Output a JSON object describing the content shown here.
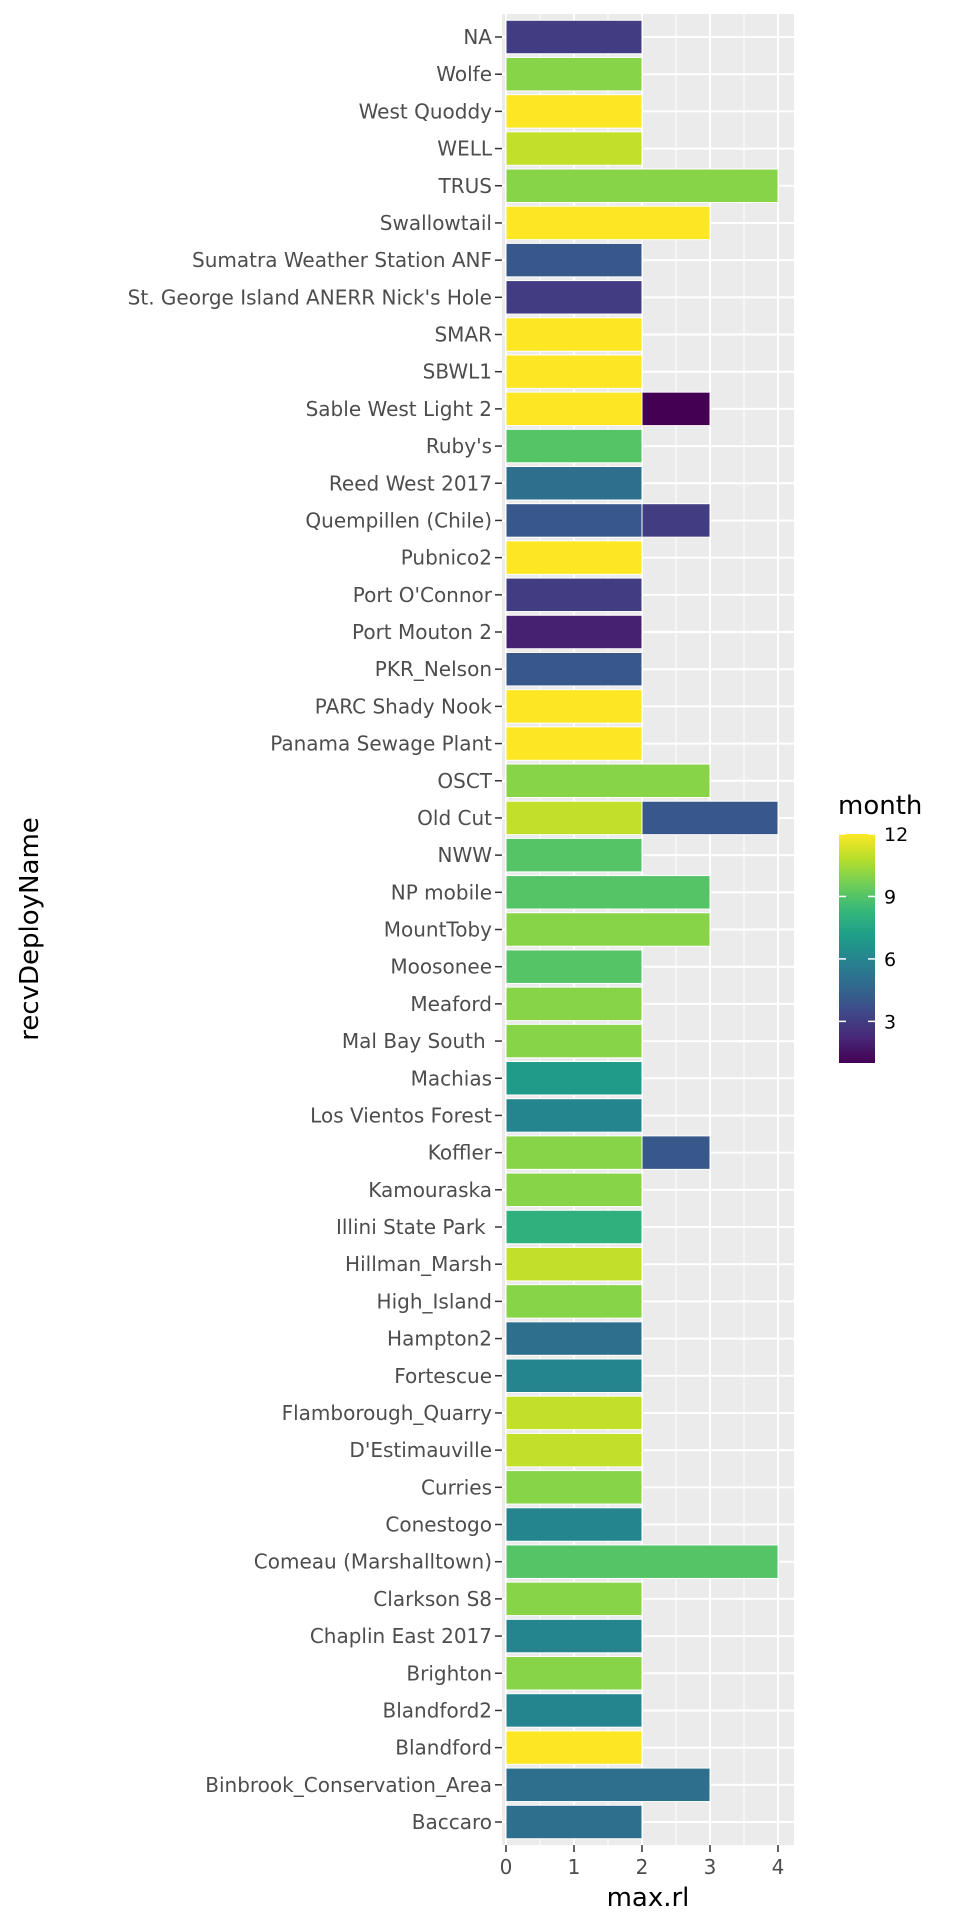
{
  "chart_data": {
    "type": "bar",
    "orientation": "horizontal",
    "stacked": true,
    "xlabel": "max.rl",
    "ylabel": "recvDeployName",
    "xlim": [
      0,
      4
    ],
    "x_ticks": [
      "0",
      "1",
      "2",
      "3",
      "4"
    ],
    "grid": true,
    "legend": {
      "title": "month",
      "position": "right",
      "type": "colorbar",
      "range": [
        1,
        12
      ],
      "ticks": [
        "3",
        "6",
        "9",
        "12"
      ],
      "colors": [
        "#440154",
        "#482878",
        "#3e4989",
        "#31688e",
        "#26828e",
        "#1f9e89",
        "#35b779",
        "#6ece58",
        "#b5de2b",
        "#fde725"
      ]
    },
    "categories": [
      "NA",
      "Wolfe",
      "West Quoddy",
      "WELL",
      "TRUS",
      "Swallowtail",
      "Sumatra Weather Station ANF",
      "St. George Island ANERR Nick's Hole",
      "SMAR",
      "SBWL1",
      "Sable West Light 2",
      "Ruby's",
      "Reed West 2017",
      "Quempillen (Chile)",
      "Pubnico2",
      "Port O'Connor",
      "Port Mouton 2",
      "PKR_Nelson",
      "PARC Shady Nook",
      "Panama Sewage Plant",
      "OSCT",
      "Old Cut",
      "NWW",
      "NP mobile",
      "MountToby",
      "Moosonee",
      "Meaford",
      "Mal Bay South ",
      "Machias",
      "Los Vientos Forest",
      "Koffler",
      "Kamouraska",
      "Illini State Park ",
      "Hillman_Marsh",
      "High_Island",
      "Hampton2",
      "Fortescue",
      "Flamborough_Quarry",
      "D'Estimauville",
      "Curries",
      "Conestogo",
      "Comeau (Marshalltown)",
      "Clarkson S8",
      "Chaplin East 2017",
      "Brighton",
      "Blandford2",
      "Blandford",
      "Binbrook_Conservation_Area",
      "Baccaro"
    ],
    "bars": [
      [
        {
          "start": 0,
          "end": 2,
          "month": 3
        }
      ],
      [
        {
          "start": 0,
          "end": 2,
          "month": 10
        }
      ],
      [
        {
          "start": 0,
          "end": 2,
          "month": 12
        }
      ],
      [
        {
          "start": 0,
          "end": 2,
          "month": 11
        }
      ],
      [
        {
          "start": 0,
          "end": 4,
          "month": 10
        }
      ],
      [
        {
          "start": 0,
          "end": 3,
          "month": 12
        }
      ],
      [
        {
          "start": 0,
          "end": 2,
          "month": 4
        }
      ],
      [
        {
          "start": 0,
          "end": 2,
          "month": 3
        }
      ],
      [
        {
          "start": 0,
          "end": 2,
          "month": 12
        }
      ],
      [
        {
          "start": 0,
          "end": 2,
          "month": 12
        }
      ],
      [
        {
          "start": 0,
          "end": 2,
          "month": 12
        },
        {
          "start": 2,
          "end": 3,
          "month": 1
        }
      ],
      [
        {
          "start": 0,
          "end": 2,
          "month": 9
        }
      ],
      [
        {
          "start": 0,
          "end": 2,
          "month": 5
        }
      ],
      [
        {
          "start": 0,
          "end": 2,
          "month": 4
        },
        {
          "start": 2,
          "end": 3,
          "month": 3
        }
      ],
      [
        {
          "start": 0,
          "end": 2,
          "month": 12
        }
      ],
      [
        {
          "start": 0,
          "end": 2,
          "month": 3
        }
      ],
      [
        {
          "start": 0,
          "end": 2,
          "month": 2
        }
      ],
      [
        {
          "start": 0,
          "end": 2,
          "month": 4
        }
      ],
      [
        {
          "start": 0,
          "end": 2,
          "month": 12
        }
      ],
      [
        {
          "start": 0,
          "end": 2,
          "month": 12
        }
      ],
      [
        {
          "start": 0,
          "end": 3,
          "month": 10
        }
      ],
      [
        {
          "start": 0,
          "end": 2,
          "month": 11
        },
        {
          "start": 2,
          "end": 4,
          "month": 4
        }
      ],
      [
        {
          "start": 0,
          "end": 2,
          "month": 9
        }
      ],
      [
        {
          "start": 0,
          "end": 3,
          "month": 9
        }
      ],
      [
        {
          "start": 0,
          "end": 3,
          "month": 10
        }
      ],
      [
        {
          "start": 0,
          "end": 2,
          "month": 9
        }
      ],
      [
        {
          "start": 0,
          "end": 2,
          "month": 10
        }
      ],
      [
        {
          "start": 0,
          "end": 2,
          "month": 10
        }
      ],
      [
        {
          "start": 0,
          "end": 2,
          "month": 7
        }
      ],
      [
        {
          "start": 0,
          "end": 2,
          "month": 6
        }
      ],
      [
        {
          "start": 0,
          "end": 2,
          "month": 10
        },
        {
          "start": 2,
          "end": 3,
          "month": 4
        }
      ],
      [
        {
          "start": 0,
          "end": 2,
          "month": 10
        }
      ],
      [
        {
          "start": 0,
          "end": 2,
          "month": 8
        }
      ],
      [
        {
          "start": 0,
          "end": 2,
          "month": 11
        }
      ],
      [
        {
          "start": 0,
          "end": 2,
          "month": 10
        }
      ],
      [
        {
          "start": 0,
          "end": 2,
          "month": 5
        }
      ],
      [
        {
          "start": 0,
          "end": 2,
          "month": 6
        }
      ],
      [
        {
          "start": 0,
          "end": 2,
          "month": 11
        }
      ],
      [
        {
          "start": 0,
          "end": 2,
          "month": 11
        }
      ],
      [
        {
          "start": 0,
          "end": 2,
          "month": 10
        }
      ],
      [
        {
          "start": 0,
          "end": 2,
          "month": 6
        }
      ],
      [
        {
          "start": 0,
          "end": 4,
          "month": 9
        }
      ],
      [
        {
          "start": 0,
          "end": 2,
          "month": 10
        }
      ],
      [
        {
          "start": 0,
          "end": 2,
          "month": 6
        }
      ],
      [
        {
          "start": 0,
          "end": 2,
          "month": 10
        }
      ],
      [
        {
          "start": 0,
          "end": 2,
          "month": 6
        }
      ],
      [
        {
          "start": 0,
          "end": 2,
          "month": 12
        }
      ],
      [
        {
          "start": 0,
          "end": 3,
          "month": 5
        }
      ],
      [
        {
          "start": 0,
          "end": 2,
          "month": 5
        }
      ]
    ]
  }
}
